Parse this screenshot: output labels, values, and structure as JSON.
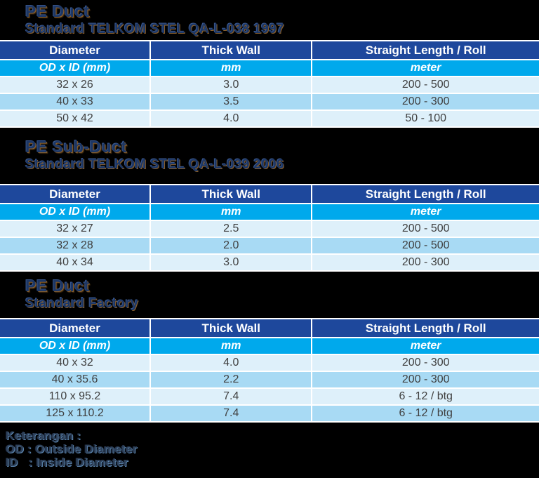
{
  "colors": {
    "background": "#000000",
    "header_bg": "#1e489c",
    "units_bg": "#00a9ec",
    "row_light": "#def0fa",
    "row_dark": "#a8daf4",
    "header_text": "#ffffff",
    "cell_text": "#404040",
    "title_text": "#1d3765"
  },
  "sections": [
    {
      "title": "PE Duct",
      "subtitle": "Standard TELKOM STEL QA-L-038 1997",
      "table": {
        "headers": [
          "Diameter",
          "Thick Wall",
          "Straight Length / Roll"
        ],
        "units": [
          "OD x ID (mm)",
          "mm",
          "meter"
        ],
        "rows": [
          [
            "32 x 26",
            "3.0",
            "200 - 500"
          ],
          [
            "40 x 33",
            "3.5",
            "200 - 300"
          ],
          [
            "50 x 42",
            "4.0",
            "50 - 100"
          ]
        ]
      }
    },
    {
      "title": "PE Sub-Duct",
      "subtitle": "Standard TELKOM STEL QA-L-039 2006",
      "table": {
        "headers": [
          "Diameter",
          "Thick Wall",
          "Straight Length / Roll"
        ],
        "units": [
          "OD x ID (mm)",
          "mm",
          "meter"
        ],
        "rows": [
          [
            "32 x 27",
            "2.5",
            "200 - 500"
          ],
          [
            "32 x 28",
            "2.0",
            "200 - 500"
          ],
          [
            "40 x 34",
            "3.0",
            "200 - 300"
          ]
        ]
      }
    },
    {
      "title": "PE Duct",
      "subtitle": "Standard Factory",
      "table": {
        "headers": [
          "Diameter",
          "Thick Wall",
          "Straight Length / Roll"
        ],
        "units": [
          "OD x ID (mm)",
          "mm",
          "meter"
        ],
        "rows": [
          [
            "40 x 32",
            "4.0",
            "200 - 300"
          ],
          [
            "40 x 35.6",
            "2.2",
            "200 - 300"
          ],
          [
            "110 x 95.2",
            "7.4",
            "6 - 12 / btg"
          ],
          [
            "125 x 110.2",
            "7.4",
            "6 - 12 / btg"
          ]
        ]
      }
    }
  ],
  "footer": {
    "lines": [
      "Keterangan :",
      "OD : Outside Diameter",
      "ID   : Inside Diameter"
    ]
  }
}
